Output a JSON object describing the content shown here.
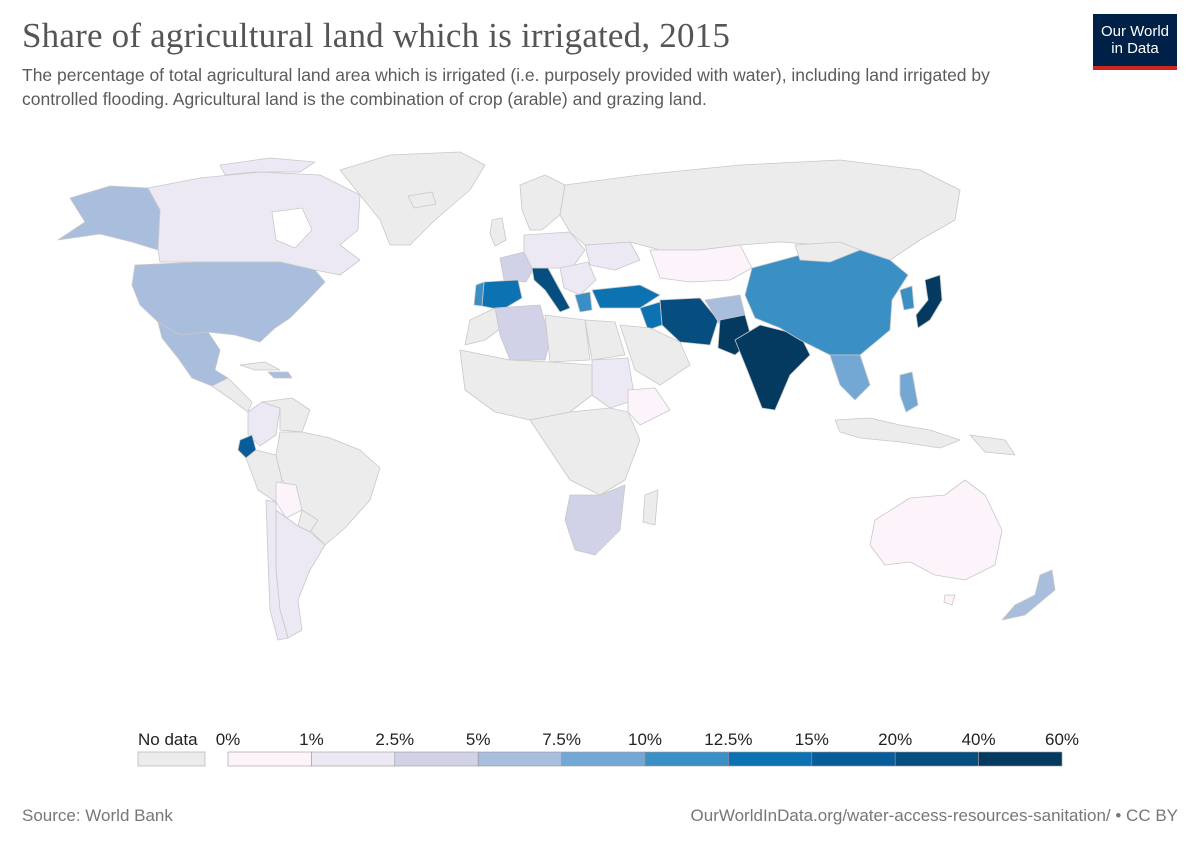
{
  "header": {
    "title": "Share of agricultural land which is irrigated, 2015",
    "subtitle": "The percentage of total agricultural land area which is irrigated (i.e. purposely provided with water), including land irrigated by controlled flooding. Agricultural land is the combination of crop (arable) and grazing land."
  },
  "logo": {
    "line1": "Our World",
    "line2": "in Data"
  },
  "legend": {
    "no_data_label": "No data",
    "no_data_color": "#ececec",
    "bins": [
      {
        "label": "0%",
        "color": "#fdf3fb"
      },
      {
        "label": "1%",
        "color": "#ece8f4"
      },
      {
        "label": "2.5%",
        "color": "#d1d1e7"
      },
      {
        "label": "5%",
        "color": "#a9bddd"
      },
      {
        "label": "7.5%",
        "color": "#73a8d4"
      },
      {
        "label": "10%",
        "color": "#3a90c5"
      },
      {
        "label": "12.5%",
        "color": "#0d72b1"
      },
      {
        "label": "15%",
        "color": "#075c99"
      },
      {
        "label": "20%",
        "color": "#064e7f"
      },
      {
        "label": "40%",
        "color": "#043a60"
      }
    ],
    "end_label": "60%"
  },
  "map": {
    "land_no_data": "#ececec",
    "border": "#c8c8c8"
  },
  "footer": {
    "source": "Source: World Bank",
    "url": "OurWorldInData.org/water-access-resources-sanitation/ • CC BY"
  }
}
